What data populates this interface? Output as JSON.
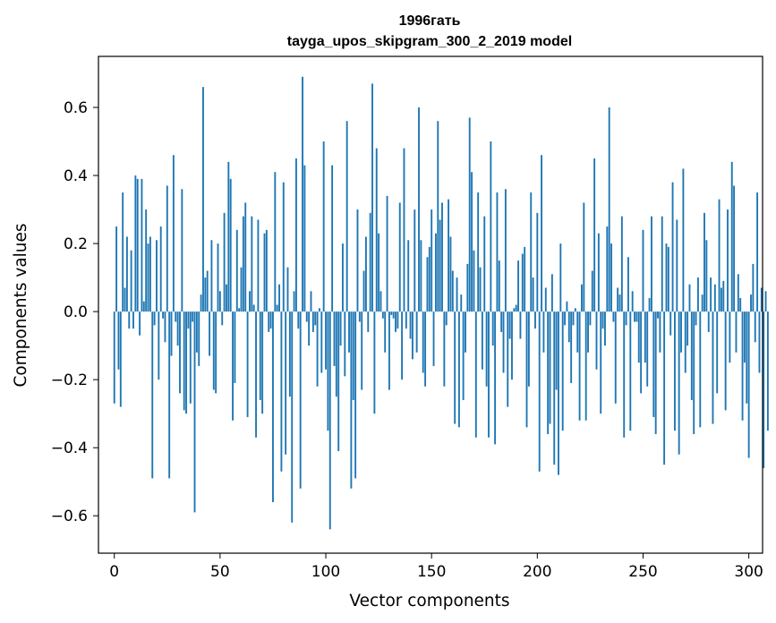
{
  "chart_data": {
    "type": "bar",
    "title": "1996гать",
    "subtitle": "tayga_upos_skipgram_300_2_2019 model",
    "xlabel": "Vector components",
    "ylabel": "Components values",
    "xlim": [
      -7.5,
      306.5
    ],
    "ylim": [
      -0.71,
      0.75
    ],
    "x_ticks": [
      0,
      50,
      100,
      150,
      200,
      250,
      300
    ],
    "x_tick_labels": [
      "0",
      "50",
      "100",
      "150",
      "200",
      "250",
      "300"
    ],
    "y_ticks": [
      -0.6,
      -0.4,
      -0.2,
      0.0,
      0.2,
      0.4,
      0.6
    ],
    "y_tick_labels": [
      "−0.6",
      "−0.4",
      "−0.2",
      "0.0",
      "0.2",
      "0.4",
      "0.6"
    ],
    "bar_color": "#1f77b4",
    "values": [
      -0.27,
      0.25,
      -0.17,
      -0.28,
      0.35,
      0.07,
      0.22,
      -0.05,
      0.18,
      -0.05,
      0.4,
      0.39,
      -0.07,
      0.39,
      0.03,
      0.3,
      0.2,
      0.22,
      -0.49,
      -0.04,
      0.21,
      -0.2,
      0.25,
      -0.02,
      -0.09,
      0.37,
      -0.49,
      -0.13,
      0.46,
      -0.03,
      -0.1,
      -0.24,
      0.36,
      -0.29,
      -0.3,
      -0.05,
      -0.27,
      -0.03,
      -0.59,
      -0.12,
      -0.16,
      0.05,
      0.66,
      0.1,
      0.12,
      -0.13,
      0.21,
      -0.23,
      -0.24,
      0.2,
      0.06,
      -0.04,
      0.29,
      0.08,
      0.44,
      0.39,
      -0.32,
      -0.21,
      0.24,
      0.01,
      0.13,
      0.28,
      0.32,
      -0.31,
      0.06,
      0.28,
      0.02,
      -0.37,
      0.27,
      -0.26,
      -0.3,
      0.23,
      0.24,
      -0.06,
      -0.05,
      -0.56,
      0.41,
      0.02,
      0.08,
      -0.47,
      0.38,
      -0.42,
      0.13,
      -0.25,
      -0.62,
      0.06,
      0.45,
      -0.05,
      -0.52,
      0.69,
      0.43,
      -0.03,
      -0.1,
      0.06,
      -0.06,
      -0.04,
      -0.22,
      0.01,
      -0.18,
      0.5,
      -0.17,
      -0.35,
      -0.64,
      0.43,
      -0.16,
      -0.25,
      -0.41,
      -0.1,
      0.2,
      -0.19,
      0.56,
      -0.12,
      -0.52,
      -0.26,
      -0.49,
      0.3,
      -0.03,
      -0.23,
      0.12,
      0.22,
      -0.06,
      0.29,
      0.67,
      -0.3,
      0.48,
      0.23,
      0.06,
      -0.02,
      -0.12,
      0.34,
      -0.23,
      -0.01,
      -0.02,
      -0.06,
      -0.05,
      0.32,
      -0.2,
      0.48,
      -0.05,
      0.21,
      -0.08,
      -0.14,
      0.3,
      -0.12,
      0.6,
      0.21,
      -0.18,
      -0.22,
      0.16,
      0.19,
      0.3,
      -0.16,
      0.23,
      0.56,
      0.27,
      0.32,
      -0.22,
      -0.04,
      0.33,
      0.22,
      0.12,
      -0.33,
      0.1,
      -0.34,
      0.05,
      -0.26,
      -0.12,
      0.14,
      0.57,
      0.41,
      0.18,
      -0.37,
      0.35,
      0.13,
      -0.17,
      0.28,
      -0.22,
      -0.37,
      0.5,
      -0.1,
      -0.39,
      0.35,
      0.15,
      -0.06,
      -0.18,
      0.36,
      -0.28,
      -0.08,
      -0.2,
      0.01,
      0.02,
      0.15,
      -0.08,
      0.17,
      0.19,
      -0.34,
      -0.22,
      0.35,
      0.1,
      -0.05,
      0.29,
      -0.47,
      0.46,
      -0.12,
      0.07,
      -0.36,
      -0.33,
      0.11,
      -0.45,
      -0.23,
      -0.48,
      0.2,
      -0.35,
      -0.04,
      0.03,
      -0.09,
      -0.21,
      -0.04,
      0.01,
      -0.12,
      -0.32,
      0.08,
      0.32,
      -0.32,
      -0.12,
      -0.04,
      0.12,
      0.45,
      -0.17,
      0.23,
      -0.3,
      -0.05,
      -0.1,
      0.25,
      0.6,
      0.2,
      -0.03,
      -0.27,
      0.07,
      0.05,
      0.28,
      -0.37,
      -0.04,
      0.16,
      -0.35,
      0.06,
      -0.03,
      -0.03,
      -0.15,
      -0.24,
      0.24,
      -0.15,
      -0.22,
      0.04,
      0.28,
      -0.31,
      -0.36,
      -0.02,
      -0.12,
      0.28,
      -0.45,
      0.2,
      0.19,
      -0.07,
      0.38,
      -0.35,
      0.27,
      -0.42,
      -0.12,
      0.42,
      -0.18,
      -0.1,
      0.08,
      -0.26,
      -0.36,
      -0.04,
      0.1,
      -0.34,
      0.05,
      0.29,
      0.21,
      -0.06,
      0.1,
      -0.33,
      0.08,
      -0.24,
      0.33,
      0.07,
      0.09,
      -0.29,
      0.3,
      -0.15,
      0.44,
      0.37,
      -0.12,
      0.11,
      0.04,
      -0.32,
      -0.15,
      -0.27,
      -0.43,
      0.05,
      0.14,
      -0.09,
      0.35,
      -0.18,
      0.07,
      -0.46,
      0.06,
      -0.35
    ]
  }
}
